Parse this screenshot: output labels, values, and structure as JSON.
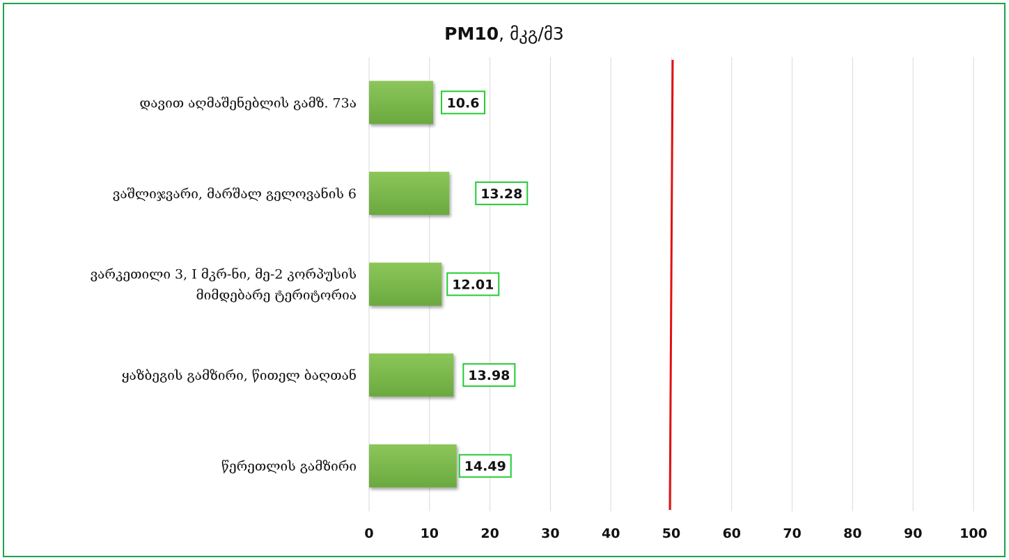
{
  "chart_data": {
    "type": "bar",
    "orientation": "horizontal",
    "title_bold": "PM10",
    "title_rest": ", მკგ/მ3",
    "categories": [
      [
        "დავით აღმაშენებლის გამზ. 73ა"
      ],
      [
        "ვაშლიჯვარი, მარშალ გელოვანის 6"
      ],
      [
        "ვარკეთილი 3, I მკრ-ნი, მე-2 კორპუსის",
        "მიმდებარე ტერიტორია"
      ],
      [
        "ყაზბეგის გამზირი, წითელ ბაღთან"
      ],
      [
        "წერეთლის გამზირი"
      ]
    ],
    "values": [
      10.6,
      13.28,
      12.01,
      13.98,
      14.49
    ],
    "value_labels": [
      "10.6",
      "13.28",
      "12.01",
      "13.98",
      "14.49"
    ],
    "xlim": [
      0,
      100
    ],
    "x_ticks": [
      0,
      10,
      20,
      30,
      40,
      50,
      60,
      70,
      80,
      90,
      100
    ],
    "reference_line": {
      "value": 50,
      "color": "#e01010"
    },
    "grid": "vertical",
    "colors": {
      "bar": "#6aa93f",
      "bar_top": "#8cc65a",
      "label_border": "#22cc33",
      "frame": "#1aa34a",
      "grid": "#d9d9d9"
    }
  }
}
